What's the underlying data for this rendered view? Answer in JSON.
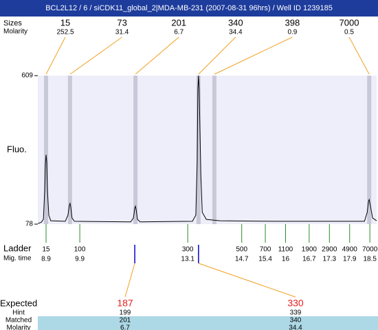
{
  "chart_data": {
    "type": "line",
    "title": "BCL2L12 / 6 / siCDK11_global_2|MDA-MB-231 (2007-08-31 96hrs) / Well ID 1239185",
    "top_row_labels": [
      "Sizes",
      "Molarity"
    ],
    "y_label": "Fluo.",
    "xlim": [
      8.655,
      18.7
    ],
    "ylim": [
      78,
      609
    ],
    "yticks": [
      78,
      609
    ],
    "line_color": "#000000",
    "band_color": "#c8c8d8",
    "plot_bg": "#eeeefa",
    "peaks": [
      {
        "size": 15,
        "molarity": 252.5,
        "mig_time": 8.9
      },
      {
        "size": 73,
        "molarity": 31.4,
        "mig_time": 9.61
      },
      {
        "size": 201,
        "molarity": 6.7,
        "mig_time": 11.55
      },
      {
        "size": 340,
        "molarity": 34.4,
        "mig_time": 13.42
      },
      {
        "size": 398,
        "molarity": 0.9,
        "mig_time": 13.89
      },
      {
        "size": 7000,
        "molarity": 0.5,
        "mig_time": 18.48
      }
    ],
    "x": [
      8.66,
      8.76,
      8.82,
      8.86,
      8.88,
      8.9,
      8.92,
      8.94,
      8.98,
      9.04,
      9.47,
      9.55,
      9.59,
      9.61,
      9.63,
      9.67,
      9.74,
      11.41,
      11.49,
      11.53,
      11.55,
      11.57,
      11.61,
      11.69,
      13.24,
      13.34,
      13.38,
      13.4,
      13.42,
      13.44,
      13.49,
      13.53,
      13.65,
      14.06,
      15.69,
      18.34,
      18.42,
      18.46,
      18.48,
      18.52,
      18.58,
      18.7
    ],
    "values": [
      80,
      85,
      95,
      200,
      290,
      326,
      300,
      200,
      110,
      90,
      88,
      110,
      145,
      152,
      140,
      100,
      88,
      86,
      100,
      135,
      142,
      130,
      95,
      86,
      88,
      110,
      300,
      560,
      609,
      560,
      250,
      120,
      95,
      90,
      88,
      88,
      120,
      160,
      166,
      140,
      100,
      90
    ],
    "ladder_labels": [
      "Ladder",
      "Mig. time"
    ],
    "ladder": [
      {
        "size": 15,
        "mig_time": 8.9
      },
      {
        "size": 100,
        "mig_time": 9.9
      },
      {
        "size": 300,
        "mig_time": 13.1
      },
      {
        "size": 500,
        "mig_time": 14.7
      },
      {
        "size": 700,
        "mig_time": 15.4
      },
      {
        "size": 1100,
        "mig_time": 16
      },
      {
        "size": 1900,
        "mig_time": 16.7
      },
      {
        "size": 2900,
        "mig_time": 17.3
      },
      {
        "size": 4900,
        "mig_time": 17.9
      },
      {
        "size": 7000,
        "mig_time": 18.5
      }
    ],
    "expected_labels": [
      "Expected",
      "Hint",
      "Matched",
      "Molarity"
    ],
    "expected": [
      {
        "expected": 187,
        "hint": 199,
        "matched": 201,
        "molarity": 6.7,
        "mig_time": 11.53
      },
      {
        "expected": 330,
        "hint": 339,
        "matched": 340,
        "molarity": 34.4,
        "mig_time": 13.42
      }
    ]
  }
}
